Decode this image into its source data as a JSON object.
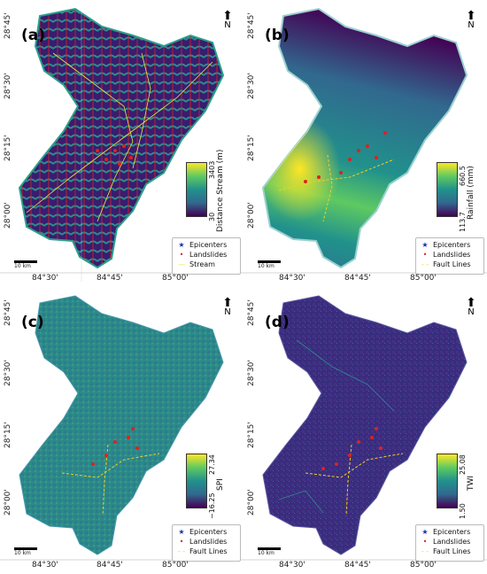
{
  "panels": [
    {
      "label": "(a)",
      "colorbar": {
        "max": "3403",
        "min": "30",
        "title": "Distance Stream (m)"
      },
      "legend": [
        "Epicenters",
        "Landslides",
        "Stream"
      ]
    },
    {
      "label": "(b)",
      "colorbar": {
        "max": "660.5",
        "min": "113.7",
        "title": "Rainfall (mm)"
      },
      "legend": [
        "Epicenters",
        "Landslides",
        "Fault Lines"
      ]
    },
    {
      "label": "(c)",
      "colorbar": {
        "max": "27.34",
        "min": "−16.25",
        "title": "SPI"
      },
      "legend": [
        "Epicenters",
        "Landslides",
        "Fault Lines"
      ]
    },
    {
      "label": "(d)",
      "colorbar": {
        "max": "25.08",
        "min": "1.50",
        "title": "TWI"
      },
      "legend": [
        "Epicenters",
        "Landslides",
        "Fault Lines"
      ]
    }
  ],
  "north_label": "N",
  "lat_ticks": [
    "28°45'",
    "28°30'",
    "28°15'",
    "28°00'"
  ],
  "lon_ticks": [
    "84°30'",
    "84°45'",
    "85°00'"
  ],
  "scale_label": "10 km",
  "colors": {
    "stream": "#e8e840",
    "landslide": "#e0201f",
    "epicenter": "#1a2ea8",
    "fault": "#f0d020",
    "viridis_low": "#440154",
    "viridis_mid": "#21918c",
    "viridis_high": "#fde725"
  }
}
